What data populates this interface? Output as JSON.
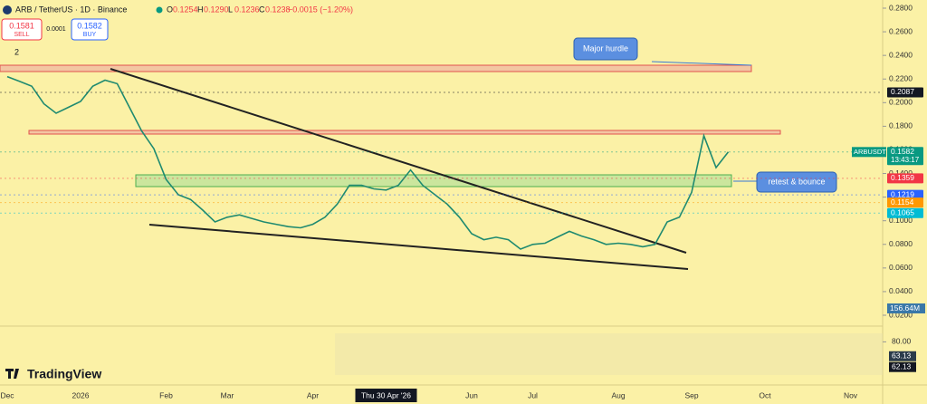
{
  "header": {
    "symbol": "ARB / TetherUS · 1D · Binance",
    "ohlc": [
      {
        "key": "O",
        "value": "0.1254"
      },
      {
        "key": "H",
        "value": "0.1290"
      },
      {
        "key": "L",
        "value": "0.1236"
      },
      {
        "key": "C",
        "value": "0.1238"
      }
    ],
    "change": "−0.0015 (−1.20%)",
    "sell": {
      "price": "0.1581",
      "label": "SELL"
    },
    "spread": "0.0001",
    "buy": {
      "price": "0.1582",
      "label": "BUY"
    },
    "indicators": "2"
  },
  "chart_data": {
    "type": "line",
    "color": "#1f8a70",
    "categories": [
      "Dec",
      null,
      null,
      null,
      null,
      null,
      "2026",
      null,
      null,
      null,
      null,
      null,
      null,
      "Feb",
      null,
      null,
      null,
      null,
      "Mar",
      null,
      null,
      null,
      null,
      null,
      null,
      "Apr",
      null,
      null,
      null,
      null,
      null,
      "Thu 30 Apr '26",
      null,
      null,
      null,
      null,
      null,
      null,
      "Jun",
      null,
      null,
      null,
      null,
      "Jul",
      null,
      null,
      null,
      null,
      null,
      null,
      "Aug",
      null,
      null,
      null,
      null,
      null,
      "Sep",
      null,
      null,
      null,
      null,
      null,
      "Oct",
      null,
      null,
      null,
      null,
      null,
      null,
      "Nov"
    ],
    "values": [
      0.222,
      0.218,
      0.214,
      0.199,
      0.191,
      0.196,
      0.201,
      0.214,
      0.219,
      0.216,
      0.196,
      0.176,
      0.161,
      0.135,
      0.122,
      0.118,
      0.109,
      0.099,
      0.103,
      0.105,
      0.102,
      0.099,
      0.097,
      0.095,
      0.094,
      0.097,
      0.103,
      0.114,
      0.13,
      0.13,
      0.127,
      0.126,
      0.13,
      0.143,
      0.13,
      0.122,
      0.114,
      0.103,
      0.089,
      0.084,
      0.086,
      0.084,
      0.076,
      0.08,
      0.081,
      0.086,
      0.091,
      0.087,
      0.084,
      0.08,
      0.081,
      0.08,
      0.078,
      0.08,
      0.099,
      0.103,
      0.124,
      0.172,
      0.145,
      0.1582,
      null,
      null,
      null,
      null,
      null,
      null,
      null,
      null,
      null,
      null
    ],
    "ylim": [
      0.02,
      0.28
    ],
    "yticks": [
      {
        "value": 0.28,
        "label": "0.2800"
      },
      {
        "value": 0.26,
        "label": "0.2600"
      },
      {
        "value": 0.24,
        "label": "0.2400"
      },
      {
        "value": 0.22,
        "label": "0.2200"
      },
      {
        "value": 0.2,
        "label": "0.2000"
      },
      {
        "value": 0.18,
        "label": "0.1800"
      },
      {
        "value": 0.16,
        "label": "0.1600"
      },
      {
        "value": 0.14,
        "label": "0.1400"
      },
      {
        "value": 0.12,
        "label": "0.1200"
      },
      {
        "value": 0.1,
        "label": "0.1000"
      },
      {
        "value": 0.08,
        "label": "0.0800"
      },
      {
        "value": 0.06,
        "label": "0.0600"
      },
      {
        "value": 0.04,
        "label": "0.0400"
      },
      {
        "value": 0.02,
        "label": "0.0200"
      }
    ],
    "price_labels": [
      {
        "value": 0.2087,
        "label": "0.2087",
        "color": "#131722"
      },
      {
        "name": "ARBUSDT",
        "value": 0.1582,
        "label": "0.1582",
        "time": "13:43:17",
        "color": "#089981"
      },
      {
        "value": 0.1359,
        "label": "0.1359",
        "color": "#f23645"
      },
      {
        "value": 0.1219,
        "label": "0.1219",
        "color": "#2962ff"
      },
      {
        "value": 0.1154,
        "label": "0.1154",
        "color": "#ff9800"
      },
      {
        "value": 0.1065,
        "label": "0.1065",
        "color": "#00bcd4"
      }
    ],
    "volume_label": {
      "value": 156640000,
      "label": "156.64M"
    },
    "rsi": {
      "ylim": [
        40,
        90
      ],
      "yticks": [
        {
          "value": 80,
          "label": "80.00"
        }
      ],
      "labels": [
        {
          "value": 63.13,
          "label": "63.13"
        },
        {
          "value": 62.13,
          "label": "62.13"
        }
      ]
    },
    "annotations": [
      "Major hurdle",
      "retest & bounce"
    ]
  },
  "brand": "TradingView"
}
